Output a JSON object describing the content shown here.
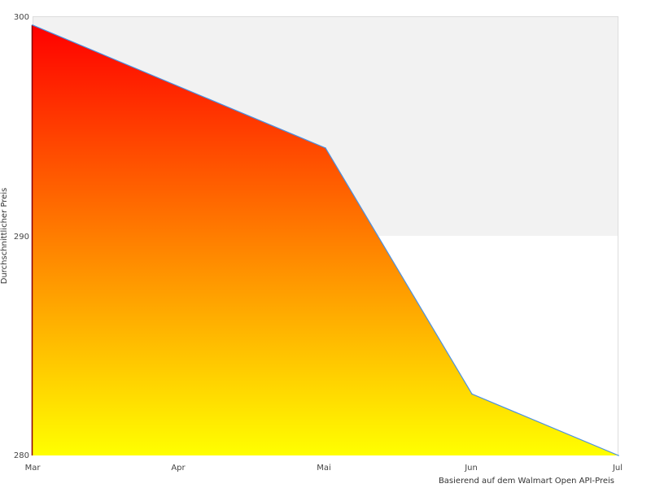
{
  "chart_data": {
    "type": "area",
    "title": "",
    "xlabel": "",
    "ylabel": "Durchschnittlicher Preis",
    "caption": "Basierend auf dem Walmart Open API-Preis",
    "categories": [
      "Mar",
      "Apr",
      "Mai",
      "Jun",
      "Jul"
    ],
    "x": [
      "Mar",
      "Mai",
      "Jun",
      "Jul"
    ],
    "values": [
      299.6,
      294.0,
      282.8,
      280.0
    ],
    "ylim": [
      280,
      300
    ],
    "yticks": [
      "280",
      "290",
      "300"
    ],
    "grid": "alternating bands",
    "legend": "none",
    "colors": {
      "fill_top": "#ff0000",
      "fill_bottom": "#ffff00",
      "line": "#4a90e2",
      "band": "#f2f2f2",
      "border": "#dddddd"
    }
  }
}
